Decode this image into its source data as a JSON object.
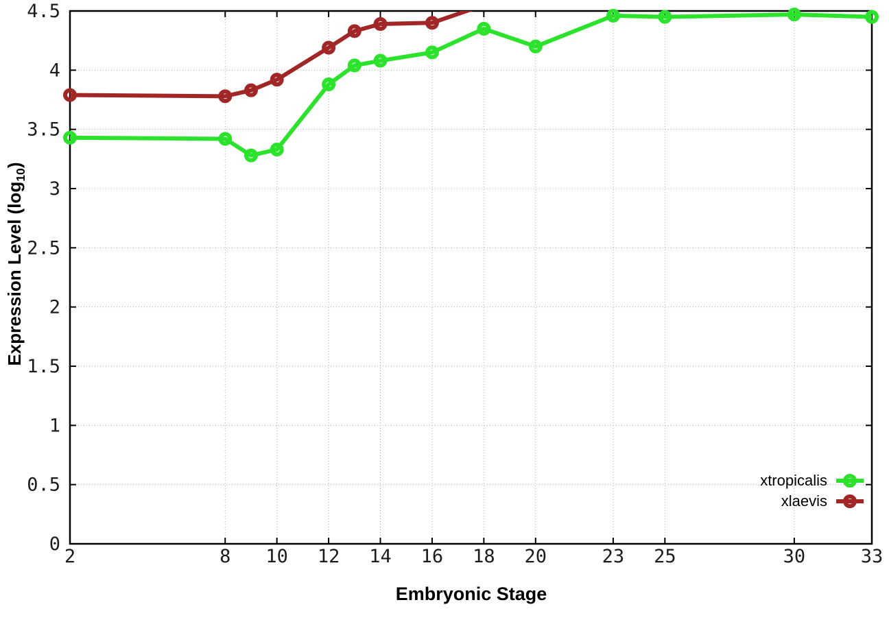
{
  "chart_data": {
    "type": "line",
    "title": "",
    "xlabel": "Embryonic Stage",
    "ylabel": {
      "text": "Expression Level (log10)",
      "prefix": "Expression Level (log",
      "sub": "10",
      "suffix": ")"
    },
    "xlim": [
      2,
      33
    ],
    "ylim": [
      0,
      4.5
    ],
    "xtick_values": [
      2,
      8,
      10,
      12,
      14,
      16,
      18,
      20,
      23,
      25,
      30,
      33
    ],
    "xtick_labels": [
      "2",
      "8",
      "10",
      "12",
      "14",
      "16",
      "18",
      "20",
      "23",
      "25",
      "30",
      "33"
    ],
    "ytick_values": [
      0,
      0.5,
      1,
      1.5,
      2,
      2.5,
      3,
      3.5,
      4,
      4.5
    ],
    "ytick_labels": [
      "0",
      "0.5",
      "1",
      "1.5",
      "2",
      "2.5",
      "3",
      "3.5",
      "4",
      "4.5"
    ],
    "grid": "dotted",
    "grid_color": "#a8a8a8",
    "axis_color": "#000000",
    "background_color": "#ffffff",
    "legend_position": "inside-lower-right",
    "marker_style": "open-circle",
    "series": [
      {
        "name": "xtropicalis",
        "color": "#2ce22c",
        "marker": "open-circle",
        "x": [
          2,
          8,
          9,
          10,
          12,
          13,
          14,
          16,
          18,
          20,
          23,
          25,
          30,
          33
        ],
        "y": [
          3.43,
          3.42,
          3.28,
          3.33,
          3.88,
          4.04,
          4.08,
          4.15,
          4.35,
          4.2,
          4.46,
          4.45,
          4.47,
          4.45
        ]
      },
      {
        "name": "xlaevis",
        "color": "#a12727",
        "marker": "open-circle",
        "x": [
          2,
          8,
          9,
          10,
          12,
          13,
          14,
          16,
          18
        ],
        "y": [
          3.79,
          3.78,
          3.83,
          3.92,
          4.19,
          4.33,
          4.39,
          4.4,
          4.55
        ],
        "note": "final segment rises above y-axis maximum (4.5) and is clipped at the top border; no marker visible for the last point"
      }
    ]
  }
}
